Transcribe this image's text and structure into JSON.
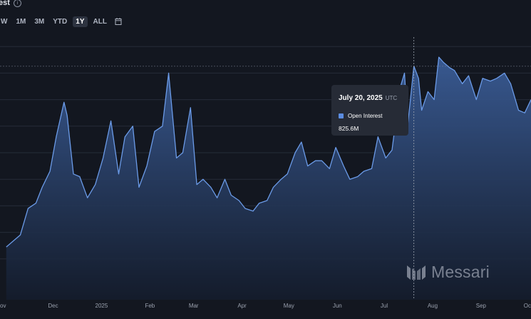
{
  "header": {
    "title": "est",
    "info_icon": "info-icon"
  },
  "time_ranges": [
    {
      "label": "W",
      "active": false
    },
    {
      "label": "1M",
      "active": false
    },
    {
      "label": "3M",
      "active": false
    },
    {
      "label": "YTD",
      "active": false
    },
    {
      "label": "1Y",
      "active": true
    },
    {
      "label": "ALL",
      "active": false
    }
  ],
  "calendar_icon": "calendar-icon",
  "tooltip": {
    "date": "July 20, 2025",
    "timezone": "UTC",
    "series_name": "Open Interest",
    "value": "825.6M"
  },
  "watermark": {
    "text": "Messari"
  },
  "colors": {
    "background": "#131720",
    "line": "#6b9be8",
    "area_top": "#3a5c96",
    "area_bottom": "#141c2c",
    "grid": "#262c38",
    "tooltip_bg": "#262b36",
    "swatch": "#5b8ce0"
  },
  "chart_data": {
    "type": "area",
    "series": [
      {
        "name": "Open Interest",
        "unit": "USD",
        "x": [
          "2024-11-01",
          "2024-11-06",
          "2024-11-10",
          "2024-11-15",
          "2024-11-20",
          "2024-11-24",
          "2024-11-29",
          "2024-12-03",
          "2024-12-08",
          "2024-12-10",
          "2024-12-14",
          "2024-12-18",
          "2024-12-23",
          "2024-12-28",
          "2025-01-02",
          "2025-01-07",
          "2025-01-12",
          "2025-01-16",
          "2025-01-21",
          "2025-01-25",
          "2025-01-30",
          "2025-02-04",
          "2025-02-09",
          "2025-02-13",
          "2025-02-18",
          "2025-02-22",
          "2025-02-27",
          "2025-03-03",
          "2025-03-07",
          "2025-03-12",
          "2025-03-16",
          "2025-03-21",
          "2025-03-25",
          "2025-03-30",
          "2025-04-03",
          "2025-04-08",
          "2025-04-12",
          "2025-04-17",
          "2025-04-21",
          "2025-04-26",
          "2025-04-30",
          "2025-05-05",
          "2025-05-09",
          "2025-05-13",
          "2025-05-18",
          "2025-05-22",
          "2025-05-27",
          "2025-05-31",
          "2025-06-05",
          "2025-06-09",
          "2025-06-14",
          "2025-06-18",
          "2025-06-23",
          "2025-06-27",
          "2025-07-02",
          "2025-07-06",
          "2025-07-11",
          "2025-07-14",
          "2025-07-16",
          "2025-07-20",
          "2025-07-23",
          "2025-07-25",
          "2025-07-29",
          "2025-08-02",
          "2025-08-05",
          "2025-08-08",
          "2025-08-12",
          "2025-08-15",
          "2025-08-20",
          "2025-08-24",
          "2025-08-29",
          "2025-09-02",
          "2025-09-07",
          "2025-09-11",
          "2025-09-16",
          "2025-09-20",
          "2025-09-25",
          "2025-09-29",
          "2025-10-03"
        ],
        "values": [
          145,
          170,
          190,
          290,
          310,
          370,
          430,
          560,
          690,
          640,
          420,
          410,
          330,
          380,
          480,
          620,
          420,
          560,
          600,
          370,
          450,
          580,
          600,
          800,
          480,
          500,
          670,
          380,
          400,
          370,
          330,
          400,
          340,
          320,
          290,
          280,
          310,
          320,
          370,
          400,
          420,
          500,
          540,
          450,
          470,
          470,
          440,
          520,
          450,
          400,
          410,
          430,
          440,
          560,
          480,
          510,
          740,
          800,
          600,
          826,
          780,
          660,
          730,
          700,
          860,
          840,
          820,
          810,
          760,
          790,
          700,
          780,
          770,
          780,
          800,
          760,
          660,
          650,
          700
        ]
      }
    ],
    "x_tick_labels": [
      "ov",
      "Dec",
      "2025",
      "Feb",
      "Mar",
      "Apr",
      "May",
      "Jun",
      "Jul",
      "Aug",
      "Sep",
      "Oc"
    ],
    "hover": {
      "x": "2025-07-20",
      "value": 825.6
    },
    "ylim": [
      0,
      1000
    ],
    "grid": true,
    "legend": "none"
  }
}
